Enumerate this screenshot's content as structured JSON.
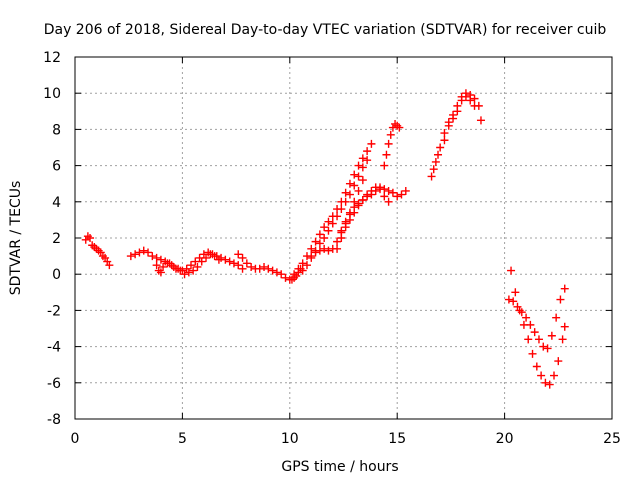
{
  "chart_data": {
    "type": "scatter",
    "title": "Day 206 of 2018, Sidereal Day-to-day VTEC variation (SDTVAR) for receiver cuib",
    "xlabel": "GPS time / hours",
    "ylabel": "SDTVAR / TECUs",
    "xlim": [
      0,
      25
    ],
    "ylim": [
      -8,
      12
    ],
    "xticks": [
      "0",
      "5",
      "10",
      "15",
      "20",
      "25"
    ],
    "yticks": [
      "-8",
      "-6",
      "-4",
      "-2",
      "0",
      "2",
      "4",
      "6",
      "8",
      "10",
      "12"
    ],
    "grid": true,
    "marker": "plus",
    "color": "#ff0000",
    "segments": [
      {
        "x": [
          0.5,
          0.6,
          0.7,
          0.8,
          0.9,
          1.0,
          1.1,
          1.2,
          1.3,
          1.4,
          1.5,
          1.6
        ],
        "y": [
          1.9,
          2.1,
          2.0,
          1.6,
          1.5,
          1.4,
          1.3,
          1.2,
          1.0,
          0.9,
          0.7,
          0.5
        ]
      },
      {
        "x": [
          2.6,
          2.8,
          3.0,
          3.2,
          3.4,
          3.6,
          3.8,
          4.0,
          4.2,
          4.4,
          4.6,
          4.8,
          5.0,
          5.2,
          5.4,
          5.6,
          5.8,
          6.0,
          6.2,
          6.4,
          6.6,
          6.8,
          7.0,
          7.2,
          7.4,
          7.6,
          7.8
        ],
        "y": [
          1.0,
          1.1,
          1.2,
          1.3,
          1.2,
          1.0,
          0.9,
          0.8,
          0.7,
          0.6,
          0.4,
          0.3,
          0.2,
          0.3,
          0.5,
          0.7,
          0.9,
          1.1,
          1.2,
          1.1,
          1.0,
          0.9,
          0.8,
          0.7,
          0.6,
          0.5,
          0.3
        ]
      },
      {
        "x": [
          3.8,
          3.9,
          4.0,
          4.1,
          4.3,
          4.5,
          4.7,
          4.9,
          5.1,
          5.3,
          5.5,
          5.7,
          5.9,
          6.1,
          6.3,
          6.5,
          6.7
        ],
        "y": [
          0.5,
          0.2,
          0.1,
          0.4,
          0.6,
          0.5,
          0.3,
          0.2,
          0.0,
          0.1,
          0.2,
          0.4,
          0.7,
          0.9,
          1.1,
          1.0,
          0.8
        ]
      },
      {
        "x": [
          7.6,
          7.8,
          8.0,
          8.2,
          8.4,
          8.6,
          8.8,
          9.0,
          9.2,
          9.4,
          9.6,
          9.8,
          10.0,
          10.1,
          10.2,
          10.3,
          10.4,
          10.5
        ],
        "y": [
          1.1,
          0.9,
          0.6,
          0.4,
          0.3,
          0.3,
          0.4,
          0.3,
          0.2,
          0.1,
          0.0,
          -0.2,
          -0.3,
          -0.3,
          -0.2,
          -0.1,
          0.1,
          0.3
        ]
      },
      {
        "x": [
          10.2,
          10.4,
          10.6,
          10.8,
          11.0,
          11.2,
          11.4,
          11.6,
          11.8,
          12.0,
          12.2,
          12.4,
          12.6,
          12.8,
          13.0,
          13.2,
          13.4,
          13.6,
          13.8
        ],
        "y": [
          0.0,
          0.3,
          0.6,
          1.0,
          1.4,
          1.8,
          2.2,
          2.6,
          2.9,
          3.2,
          3.6,
          4.0,
          4.5,
          5.0,
          5.5,
          6.0,
          6.4,
          6.8,
          7.2
        ]
      },
      {
        "x": [
          10.6,
          10.8,
          11.0,
          11.2,
          11.4,
          11.6,
          11.8,
          12.0,
          12.2,
          12.4,
          12.6,
          12.8,
          13.0,
          13.2,
          13.4,
          13.6
        ],
        "y": [
          0.2,
          0.5,
          0.9,
          1.3,
          1.7,
          2.0,
          2.4,
          2.8,
          3.2,
          3.6,
          4.0,
          4.4,
          4.9,
          5.4,
          5.9,
          6.3
        ]
      },
      {
        "x": [
          11.0,
          11.2,
          11.4,
          11.6,
          11.8,
          12.0,
          12.2,
          12.4,
          12.6,
          12.8,
          13.0,
          13.2,
          13.4
        ],
        "y": [
          1.0,
          1.2,
          1.3,
          1.4,
          1.3,
          1.4,
          1.8,
          2.3,
          2.8,
          3.4,
          4.0,
          4.6,
          5.2
        ]
      },
      {
        "x": [
          12.2,
          12.4,
          12.6,
          12.8,
          13.0,
          13.2,
          13.4,
          13.6,
          13.8,
          14.0,
          14.2,
          14.4,
          14.6,
          14.8,
          15.0,
          15.2,
          15.4
        ],
        "y": [
          1.4,
          2.0,
          2.6,
          3.0,
          3.4,
          3.8,
          4.1,
          4.4,
          4.6,
          4.8,
          4.8,
          4.7,
          4.6,
          4.5,
          4.3,
          4.4,
          4.6
        ]
      },
      {
        "x": [
          12.4,
          12.6,
          12.8,
          13.0,
          13.2,
          13.4,
          13.6,
          13.8,
          14.0,
          14.2,
          14.4,
          14.6
        ],
        "y": [
          2.4,
          2.9,
          3.3,
          3.7,
          3.9,
          4.1,
          4.3,
          4.4,
          4.6,
          4.7,
          4.3,
          4.0
        ]
      },
      {
        "x": [
          14.4,
          14.5,
          14.6,
          14.7,
          14.8,
          14.9,
          15.0,
          15.1
        ],
        "y": [
          6.0,
          6.6,
          7.2,
          7.7,
          8.1,
          8.3,
          8.2,
          8.1
        ]
      },
      {
        "x": [
          16.6,
          16.7,
          16.8,
          16.9,
          17.0,
          17.2,
          17.4,
          17.6,
          17.8,
          18.0,
          18.2,
          18.4,
          18.6,
          18.8,
          18.9
        ],
        "y": [
          5.4,
          5.8,
          6.2,
          6.6,
          7.0,
          7.8,
          8.4,
          8.8,
          9.3,
          9.8,
          10.0,
          9.9,
          9.7,
          9.3,
          8.5
        ]
      },
      {
        "x": [
          17.2,
          17.4,
          17.6,
          17.8,
          18.0,
          18.2,
          18.4,
          18.6
        ],
        "y": [
          7.4,
          8.2,
          8.6,
          9.0,
          9.6,
          9.8,
          9.6,
          9.3
        ]
      },
      {
        "x": [
          20.2,
          20.4,
          20.6,
          20.8,
          21.0,
          21.2,
          21.4,
          21.6,
          21.8,
          22.0,
          22.2,
          22.4,
          22.6,
          22.8
        ],
        "y": [
          -1.4,
          -1.5,
          -1.8,
          -2.1,
          -2.4,
          -2.8,
          -3.2,
          -3.6,
          -4.0,
          -4.1,
          -3.4,
          -2.4,
          -1.4,
          -0.8
        ]
      },
      {
        "x": [
          20.3,
          20.5,
          20.7,
          20.9,
          21.1,
          21.3,
          21.5,
          21.7,
          21.9,
          22.1,
          22.3,
          22.5,
          22.7,
          22.8
        ],
        "y": [
          0.2,
          -1.0,
          -2.0,
          -2.8,
          -3.6,
          -4.4,
          -5.1,
          -5.6,
          -6.0,
          -6.1,
          -5.6,
          -4.8,
          -3.6,
          -2.9
        ]
      }
    ]
  }
}
